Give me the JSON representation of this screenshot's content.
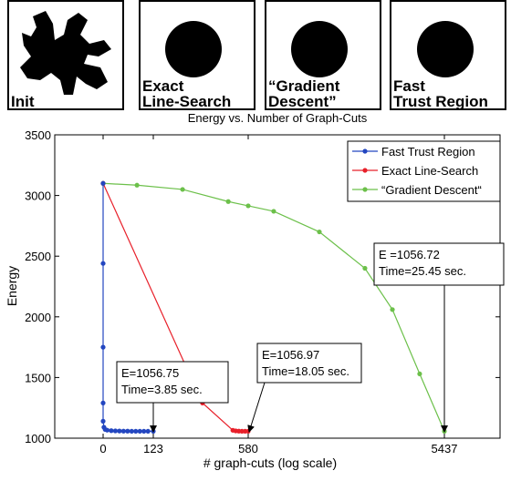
{
  "panels": [
    {
      "label": [
        "Init"
      ]
    },
    {
      "label": [
        "Exact",
        "Line-Search"
      ]
    },
    {
      "label": [
        "“Gradient",
        "Descent”"
      ]
    },
    {
      "label": [
        "Fast",
        "Trust Region"
      ]
    }
  ],
  "chart_data": {
    "type": "line",
    "title": "Energy vs. Number of Graph-Cuts",
    "x_label": "# graph-cuts (log scale)",
    "y_label": "Energy",
    "ylim": [
      1000,
      3500
    ],
    "yticks": [
      1000,
      1500,
      2000,
      2500,
      3000,
      3500
    ],
    "xticks": [
      0,
      123,
      580,
      5437
    ],
    "legend": "upper right",
    "series": [
      {
        "name": "Fast Trust Region",
        "color": "#2346c0",
        "x": [
          0,
          0,
          0,
          0,
          0,
          2,
          5,
          10,
          20,
          30,
          40,
          50,
          60,
          70,
          80,
          90,
          100,
          110,
          123
        ],
        "values": [
          3100,
          2440,
          1750,
          1290,
          1140,
          1090,
          1072,
          1066,
          1062,
          1060,
          1059,
          1058,
          1058,
          1057,
          1057,
          1057,
          1057,
          1057,
          1057
        ]
      },
      {
        "name": "Exact Line-Search",
        "color": "#e8202a",
        "x": [
          0,
          360,
          506,
          520,
          535,
          550,
          565,
          580
        ],
        "values": [
          3100,
          1290,
          1065,
          1060,
          1058,
          1057,
          1057,
          1057
        ]
      },
      {
        "name": "“Gradient Descent“",
        "color": "#6cc04a",
        "x": [
          0,
          83,
          264,
          484,
          580,
          1211,
          2342,
          3470,
          4150,
          4825,
          5437
        ],
        "values": [
          3100,
          3085,
          3050,
          2950,
          2915,
          2870,
          2700,
          2400,
          2060,
          1530,
          1057
        ]
      }
    ],
    "annotations": [
      {
        "lines": [
          "E=1056.75",
          "Time=3.85 sec."
        ]
      },
      {
        "lines": [
          "E=1056.97",
          "Time=18.05 sec."
        ]
      },
      {
        "lines": [
          "E =1056.72",
          "Time=25.45 sec."
        ]
      }
    ]
  }
}
